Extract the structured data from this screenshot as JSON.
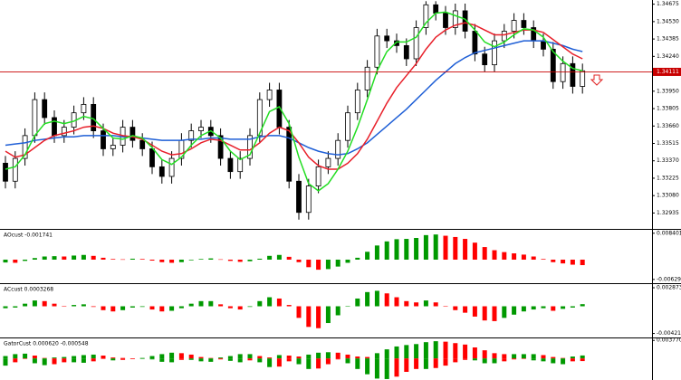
{
  "chart_data": [
    {
      "type": "candlestick",
      "open": [
        1.3335,
        1.332,
        1.3339,
        1.3358,
        1.3388,
        1.3373,
        1.3358,
        1.3365,
        1.3377,
        1.3384,
        1.3362,
        1.3347,
        1.335,
        1.3365,
        1.3354,
        1.3347,
        1.3332,
        1.3324,
        1.3339,
        1.3354,
        1.3362,
        1.3365,
        1.3358,
        1.3339,
        1.3328,
        1.3339,
        1.3358,
        1.3388,
        1.3396,
        1.3365,
        1.332,
        1.3294,
        1.3316,
        1.3332,
        1.3339,
        1.3354,
        1.3377,
        1.3396,
        1.3415,
        1.3441,
        1.3437,
        1.3433,
        1.3422,
        1.3448,
        1.3467,
        1.346,
        1.3448,
        1.3462,
        1.3445,
        1.3426,
        1.3417,
        1.3437,
        1.3445,
        1.3454,
        1.3448,
        1.3437,
        1.343,
        1.3403,
        1.3418,
        1.3399
      ],
      "high": [
        1.3341,
        1.3345,
        1.3364,
        1.3394,
        1.3394,
        1.3379,
        1.3371,
        1.3383,
        1.339,
        1.339,
        1.3368,
        1.3356,
        1.3371,
        1.3371,
        1.336,
        1.3353,
        1.3338,
        1.3345,
        1.336,
        1.3368,
        1.3371,
        1.3371,
        1.3364,
        1.3345,
        1.3345,
        1.3364,
        1.3394,
        1.3402,
        1.3402,
        1.3371,
        1.3326,
        1.3322,
        1.3338,
        1.3345,
        1.336,
        1.3383,
        1.3402,
        1.3421,
        1.3447,
        1.3447,
        1.3443,
        1.3439,
        1.3454,
        1.347,
        1.347,
        1.3466,
        1.3468,
        1.3468,
        1.3451,
        1.3432,
        1.3443,
        1.3451,
        1.346,
        1.346,
        1.3454,
        1.3443,
        1.3436,
        1.3424,
        1.3424,
        1.3418
      ],
      "low": [
        1.3314,
        1.3314,
        1.3333,
        1.3352,
        1.3367,
        1.3352,
        1.3352,
        1.3359,
        1.3371,
        1.3356,
        1.3341,
        1.3341,
        1.3344,
        1.3348,
        1.3341,
        1.3326,
        1.3318,
        1.3318,
        1.3333,
        1.3348,
        1.3356,
        1.3352,
        1.3333,
        1.3322,
        1.3322,
        1.3333,
        1.3352,
        1.3382,
        1.3359,
        1.3314,
        1.3288,
        1.3288,
        1.331,
        1.3326,
        1.3333,
        1.3348,
        1.3371,
        1.339,
        1.3409,
        1.3431,
        1.3427,
        1.3416,
        1.3416,
        1.3442,
        1.3454,
        1.3442,
        1.3442,
        1.3439,
        1.342,
        1.3411,
        1.3411,
        1.3431,
        1.3439,
        1.3442,
        1.3431,
        1.3424,
        1.3397,
        1.3397,
        1.3393,
        1.3393
      ],
      "close": [
        1.332,
        1.3339,
        1.3358,
        1.3388,
        1.3373,
        1.3358,
        1.3365,
        1.3377,
        1.3384,
        1.3362,
        1.3347,
        1.335,
        1.3365,
        1.3354,
        1.3347,
        1.3332,
        1.3324,
        1.3339,
        1.3354,
        1.3362,
        1.3365,
        1.3358,
        1.3339,
        1.3328,
        1.3339,
        1.3358,
        1.3388,
        1.3396,
        1.3365,
        1.332,
        1.3294,
        1.3316,
        1.3332,
        1.3339,
        1.3354,
        1.3377,
        1.3396,
        1.3415,
        1.3441,
        1.3437,
        1.3433,
        1.3422,
        1.3448,
        1.3467,
        1.346,
        1.3448,
        1.3462,
        1.3445,
        1.3426,
        1.3417,
        1.3437,
        1.3445,
        1.3454,
        1.3448,
        1.3437,
        1.343,
        1.3403,
        1.3418,
        1.3399,
        1.3412
      ],
      "up_color": "#ffffff",
      "down_color": "#000000",
      "outline_color": "#000000",
      "series": [
        {
          "color": "#1f5fd6",
          "values": [
            1.335,
            1.3351,
            1.3352,
            1.3354,
            1.3355,
            1.3356,
            1.3357,
            1.3357,
            1.3358,
            1.3358,
            1.3358,
            1.3358,
            1.3357,
            1.3357,
            1.3356,
            1.3355,
            1.3354,
            1.3354,
            1.3354,
            1.3355,
            1.3355,
            1.3356,
            1.3356,
            1.3355,
            1.3355,
            1.3355,
            1.3357,
            1.3358,
            1.3358,
            1.3356,
            1.3352,
            1.3348,
            1.3345,
            1.3343,
            1.3342,
            1.3343,
            1.3347,
            1.3352,
            1.3359,
            1.3366,
            1.3373,
            1.338,
            1.3388,
            1.3396,
            1.3404,
            1.3411,
            1.3418,
            1.3423,
            1.3427,
            1.3429,
            1.3431,
            1.3433,
            1.3435,
            1.3437,
            1.3437,
            1.3437,
            1.3435,
            1.3433,
            1.343,
            1.3428
          ]
        },
        {
          "color": "#e8202a",
          "values": [
            1.3345,
            1.334,
            1.3342,
            1.3348,
            1.3354,
            1.3358,
            1.336,
            1.3362,
            1.3365,
            1.3366,
            1.3364,
            1.336,
            1.3358,
            1.3357,
            1.3355,
            1.335,
            1.3345,
            1.3342,
            1.3343,
            1.3347,
            1.3352,
            1.3355,
            1.3354,
            1.335,
            1.3346,
            1.3346,
            1.3352,
            1.336,
            1.3365,
            1.3362,
            1.3352,
            1.334,
            1.3333,
            1.333,
            1.333,
            1.3335,
            1.3343,
            1.3355,
            1.337,
            1.3385,
            1.3398,
            1.3408,
            1.3418,
            1.343,
            1.344,
            1.3446,
            1.345,
            1.3452,
            1.345,
            1.3446,
            1.3442,
            1.3442,
            1.3444,
            1.3446,
            1.3446,
            1.3444,
            1.3438,
            1.3432,
            1.3426,
            1.3422
          ]
        },
        {
          "color": "#22dd22",
          "values": [
            1.333,
            1.3332,
            1.3342,
            1.3358,
            1.3368,
            1.337,
            1.3368,
            1.337,
            1.3374,
            1.3372,
            1.3364,
            1.3356,
            1.3355,
            1.3358,
            1.3356,
            1.3348,
            1.3338,
            1.3334,
            1.334,
            1.335,
            1.3358,
            1.3362,
            1.3356,
            1.3345,
            1.3338,
            1.3342,
            1.336,
            1.3378,
            1.3382,
            1.3368,
            1.334,
            1.3318,
            1.3312,
            1.3318,
            1.333,
            1.3345,
            1.3365,
            1.3388,
            1.3412,
            1.3428,
            1.3436,
            1.3436,
            1.344,
            1.3452,
            1.346,
            1.3461,
            1.3458,
            1.3455,
            1.3446,
            1.3436,
            1.3432,
            1.3436,
            1.3442,
            1.3447,
            1.3446,
            1.344,
            1.3428,
            1.342,
            1.3414,
            1.3412
          ]
        }
      ],
      "current_price": 1.34111,
      "current_price_color": "#c80000",
      "ylim": [
        1.3281,
        1.3471
      ],
      "yticks": [
        1.34675,
        {
          "value": 1.3453,
          "label": "1.34530"
        },
        1.34385,
        {
          "value": 1.3424,
          "label": "1.34240"
        },
        {
          "value": 1.3395,
          "label": "1.33950"
        },
        1.33805,
        {
          "value": 1.3366,
          "label": "1.33660"
        },
        1.33515,
        {
          "value": 1.3337,
          "label": "1.33370"
        },
        1.33225,
        {
          "value": 1.3308,
          "label": "1.33080"
        },
        1.32935
      ]
    },
    {
      "type": "bar",
      "title": "AOcust -0.001741",
      "up_color": "#009900",
      "down_color": "#ff0000",
      "values": [
        -0.0009,
        -0.001,
        -0.0004,
        0.0005,
        0.001,
        0.0011,
        0.001,
        0.0013,
        0.0015,
        0.0012,
        0.0006,
        0.0002,
        0.0001,
        0.0003,
        0.0002,
        -0.0003,
        -0.0008,
        -0.001,
        -0.0008,
        -0.0002,
        0.0002,
        0.0004,
        0.0001,
        -0.0004,
        -0.0007,
        -0.0005,
        0.0003,
        0.0012,
        0.0015,
        0.0009,
        -0.0008,
        -0.0024,
        -0.0032,
        -0.003,
        -0.0022,
        -0.001,
        0.0006,
        0.0025,
        0.0045,
        0.0058,
        0.0065,
        0.0066,
        0.0069,
        0.0078,
        0.008,
        0.0076,
        0.0072,
        0.0066,
        0.0054,
        0.004,
        0.003,
        0.0024,
        0.002,
        0.0016,
        0.001,
        0.0002,
        -0.0008,
        -0.0012,
        -0.0016,
        -0.001741
      ],
      "ylim": [
        -0.0072,
        0.0092
      ],
      "yticks": [
        0.008401,
        -0.006292
      ]
    },
    {
      "type": "bar",
      "title": "ACcust 0.0003268",
      "up_color": "#009900",
      "down_color": "#ff0000",
      "values": [
        -0.0003,
        -0.0002,
        0.0004,
        0.0009,
        0.0008,
        0.0004,
        0,
        0.0002,
        0.0003,
        -0.0001,
        -0.0006,
        -0.0008,
        -0.0006,
        -0.0002,
        -0.0001,
        -0.0005,
        -0.0008,
        -0.0007,
        -0.0003,
        0.0004,
        0.0008,
        0.0008,
        0.0003,
        -0.0003,
        -0.0005,
        -0.0001,
        0.0008,
        0.0014,
        0.0012,
        0.0002,
        -0.0018,
        -0.0032,
        -0.0034,
        -0.0026,
        -0.0014,
        0,
        0.0012,
        0.0022,
        0.0024,
        0.002,
        0.0014,
        0.0008,
        0.0006,
        0.0009,
        0.0006,
        0,
        -0.0006,
        -0.001,
        -0.0016,
        -0.0022,
        -0.0023,
        -0.0018,
        -0.0013,
        -0.0008,
        -0.0005,
        -0.0003,
        -0.0007,
        -0.0004,
        -0.0002,
        0.0003268
      ],
      "ylim": [
        -0.0047,
        0.0033
      ],
      "yticks": [
        0.0028739,
        -0.0042165
      ]
    },
    {
      "type": "gator",
      "title": "GatorCust 0.000620 -0.000548",
      "up_color": "#009900",
      "down_color": "#ff0000",
      "upper": [
        0.0005,
        0.0009,
        0.001,
        0.0006,
        0.0001,
        0.0002,
        0.0003,
        0.0005,
        0.0007,
        0.0008,
        0.0006,
        0.0002,
        0.0001,
        0,
        0.0001,
        0.0005,
        0.0009,
        0.0012,
        0.0011,
        0.0008,
        0.0003,
        0.0001,
        0.0002,
        0.0005,
        0.0009,
        0.0009,
        0.0005,
        0.0002,
        0.0007,
        0.0006,
        0.0004,
        0.0008,
        0.0012,
        0.0013,
        0.0012,
        0.0008,
        0.0004,
        0.0003,
        0.0011,
        0.0019,
        0.0025,
        0.0028,
        0.003,
        0.0034,
        0.0036,
        0.0035,
        0.0032,
        0.0029,
        0.0023,
        0.0017,
        0.0011,
        0.0009,
        0.0009,
        0.0009,
        0.0009,
        0.0007,
        0.0003,
        0.0001,
        0.0004,
        0.00062
      ],
      "lower": [
        -0.0015,
        -0.0008,
        -0.0001,
        -0.001,
        -0.0014,
        -0.0012,
        -0.0008,
        -0.0008,
        -0.0009,
        -0.0006,
        -0.0001,
        -0.0004,
        -0.0003,
        -0.0001,
        -0.0001,
        -0.0002,
        -0.0007,
        -0.0008,
        -0.0003,
        -0.0003,
        -0.0006,
        -0.0007,
        -0.0002,
        -0.0005,
        -0.0008,
        -0.0004,
        -0.0008,
        -0.0018,
        -0.0017,
        -0.0006,
        -0.0012,
        -0.0022,
        -0.0021,
        -0.0012,
        -0.0002,
        -0.001,
        -0.0022,
        -0.0033,
        -0.0042,
        -0.0043,
        -0.0038,
        -0.0028,
        -0.0022,
        -0.0022,
        -0.002,
        -0.0015,
        -0.0008,
        -0.0003,
        -0.0004,
        -0.001,
        -0.001,
        -0.0006,
        -0.0002,
        -0.0001,
        -0.0004,
        -0.0006,
        -0.001,
        -0.0012,
        -0.0006,
        -0.000548
      ],
      "ylim": [
        -0.0045,
        0.004
      ],
      "yticks": [
        {
          "value": 0.00377,
          "label": "0.003770"
        }
      ]
    }
  ]
}
